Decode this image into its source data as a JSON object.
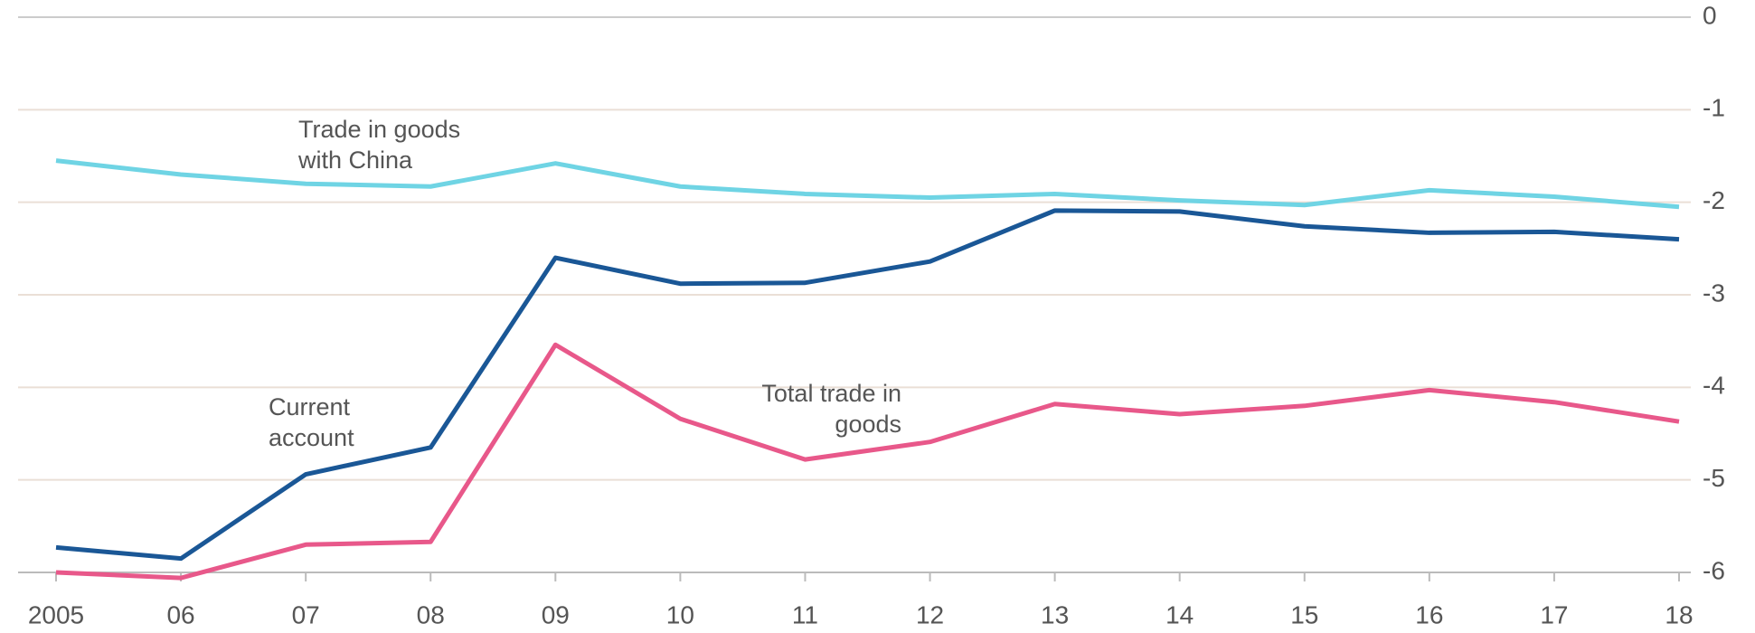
{
  "chart_data": {
    "type": "line",
    "categories": [
      "2005",
      "06",
      "07",
      "08",
      "09",
      "10",
      "11",
      "12",
      "13",
      "14",
      "15",
      "16",
      "17",
      "18"
    ],
    "series": [
      {
        "name": "Trade in goods with China",
        "color": "#6fd4e4",
        "values": [
          -1.55,
          -1.7,
          -1.8,
          -1.83,
          -1.58,
          -1.83,
          -1.91,
          -1.95,
          -1.91,
          -1.98,
          -2.03,
          -1.87,
          -1.94,
          -2.05
        ]
      },
      {
        "name": "Current account",
        "color": "#1a5796",
        "values": [
          -5.73,
          -5.85,
          -4.94,
          -4.65,
          -2.6,
          -2.88,
          -2.87,
          -2.64,
          -2.09,
          -2.1,
          -2.26,
          -2.33,
          -2.32,
          -2.4
        ]
      },
      {
        "name": "Total trade in goods",
        "color": "#e8588a",
        "values": [
          -6.0,
          -6.06,
          -5.7,
          -5.67,
          -3.54,
          -4.34,
          -4.78,
          -4.59,
          -4.18,
          -4.29,
          -4.2,
          -4.03,
          -4.16,
          -4.37
        ]
      }
    ],
    "ylim": [
      -6,
      0
    ],
    "yticks": [
      0,
      -1,
      -2,
      -3,
      -4,
      -5,
      -6
    ],
    "grid": true
  }
}
